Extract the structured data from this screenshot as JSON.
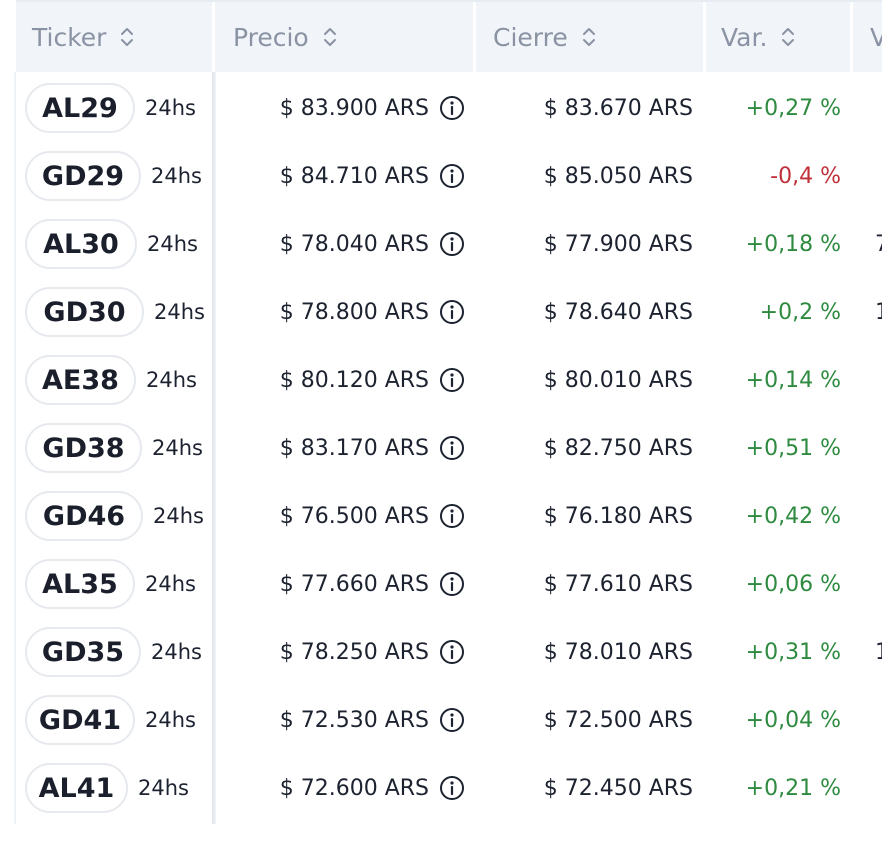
{
  "columns": {
    "ticker": "Ticker",
    "precio": "Precio",
    "cierre": "Cierre",
    "var": "Var.",
    "next": "V"
  },
  "colors": {
    "positive": "#2d8a3e",
    "negative": "#c0303a",
    "header_bg": "#f1f4f9"
  },
  "rows": [
    {
      "ticker": "AL29",
      "settle": "24hs",
      "precio": "$ 83.900 ARS",
      "cierre": "$ 83.670 ARS",
      "var": "+0,27 %",
      "dir": "up",
      "edge": ""
    },
    {
      "ticker": "GD29",
      "settle": "24hs",
      "precio": "$ 84.710 ARS",
      "cierre": "$ 85.050 ARS",
      "var": "-0,4 %",
      "dir": "down",
      "edge": ""
    },
    {
      "ticker": "AL30",
      "settle": "24hs",
      "precio": "$ 78.040 ARS",
      "cierre": "$ 77.900 ARS",
      "var": "+0,18 %",
      "dir": "up",
      "edge": "7"
    },
    {
      "ticker": "GD30",
      "settle": "24hs",
      "precio": "$ 78.800 ARS",
      "cierre": "$ 78.640 ARS",
      "var": "+0,2 %",
      "dir": "up",
      "edge": "1"
    },
    {
      "ticker": "AE38",
      "settle": "24hs",
      "precio": "$ 80.120 ARS",
      "cierre": "$ 80.010 ARS",
      "var": "+0,14 %",
      "dir": "up",
      "edge": ""
    },
    {
      "ticker": "GD38",
      "settle": "24hs",
      "precio": "$ 83.170 ARS",
      "cierre": "$ 82.750 ARS",
      "var": "+0,51 %",
      "dir": "up",
      "edge": ""
    },
    {
      "ticker": "GD46",
      "settle": "24hs",
      "precio": "$ 76.500 ARS",
      "cierre": "$ 76.180 ARS",
      "var": "+0,42 %",
      "dir": "up",
      "edge": ""
    },
    {
      "ticker": "AL35",
      "settle": "24hs",
      "precio": "$ 77.660 ARS",
      "cierre": "$ 77.610 ARS",
      "var": "+0,06 %",
      "dir": "up",
      "edge": ""
    },
    {
      "ticker": "GD35",
      "settle": "24hs",
      "precio": "$ 78.250 ARS",
      "cierre": "$ 78.010 ARS",
      "var": "+0,31 %",
      "dir": "up",
      "edge": "1"
    },
    {
      "ticker": "GD41",
      "settle": "24hs",
      "precio": "$ 72.530 ARS",
      "cierre": "$ 72.500 ARS",
      "var": "+0,04 %",
      "dir": "up",
      "edge": ""
    },
    {
      "ticker": "AL41",
      "settle": "24hs",
      "precio": "$ 72.600 ARS",
      "cierre": "$ 72.450 ARS",
      "var": "+0,21 %",
      "dir": "up",
      "edge": ""
    }
  ]
}
